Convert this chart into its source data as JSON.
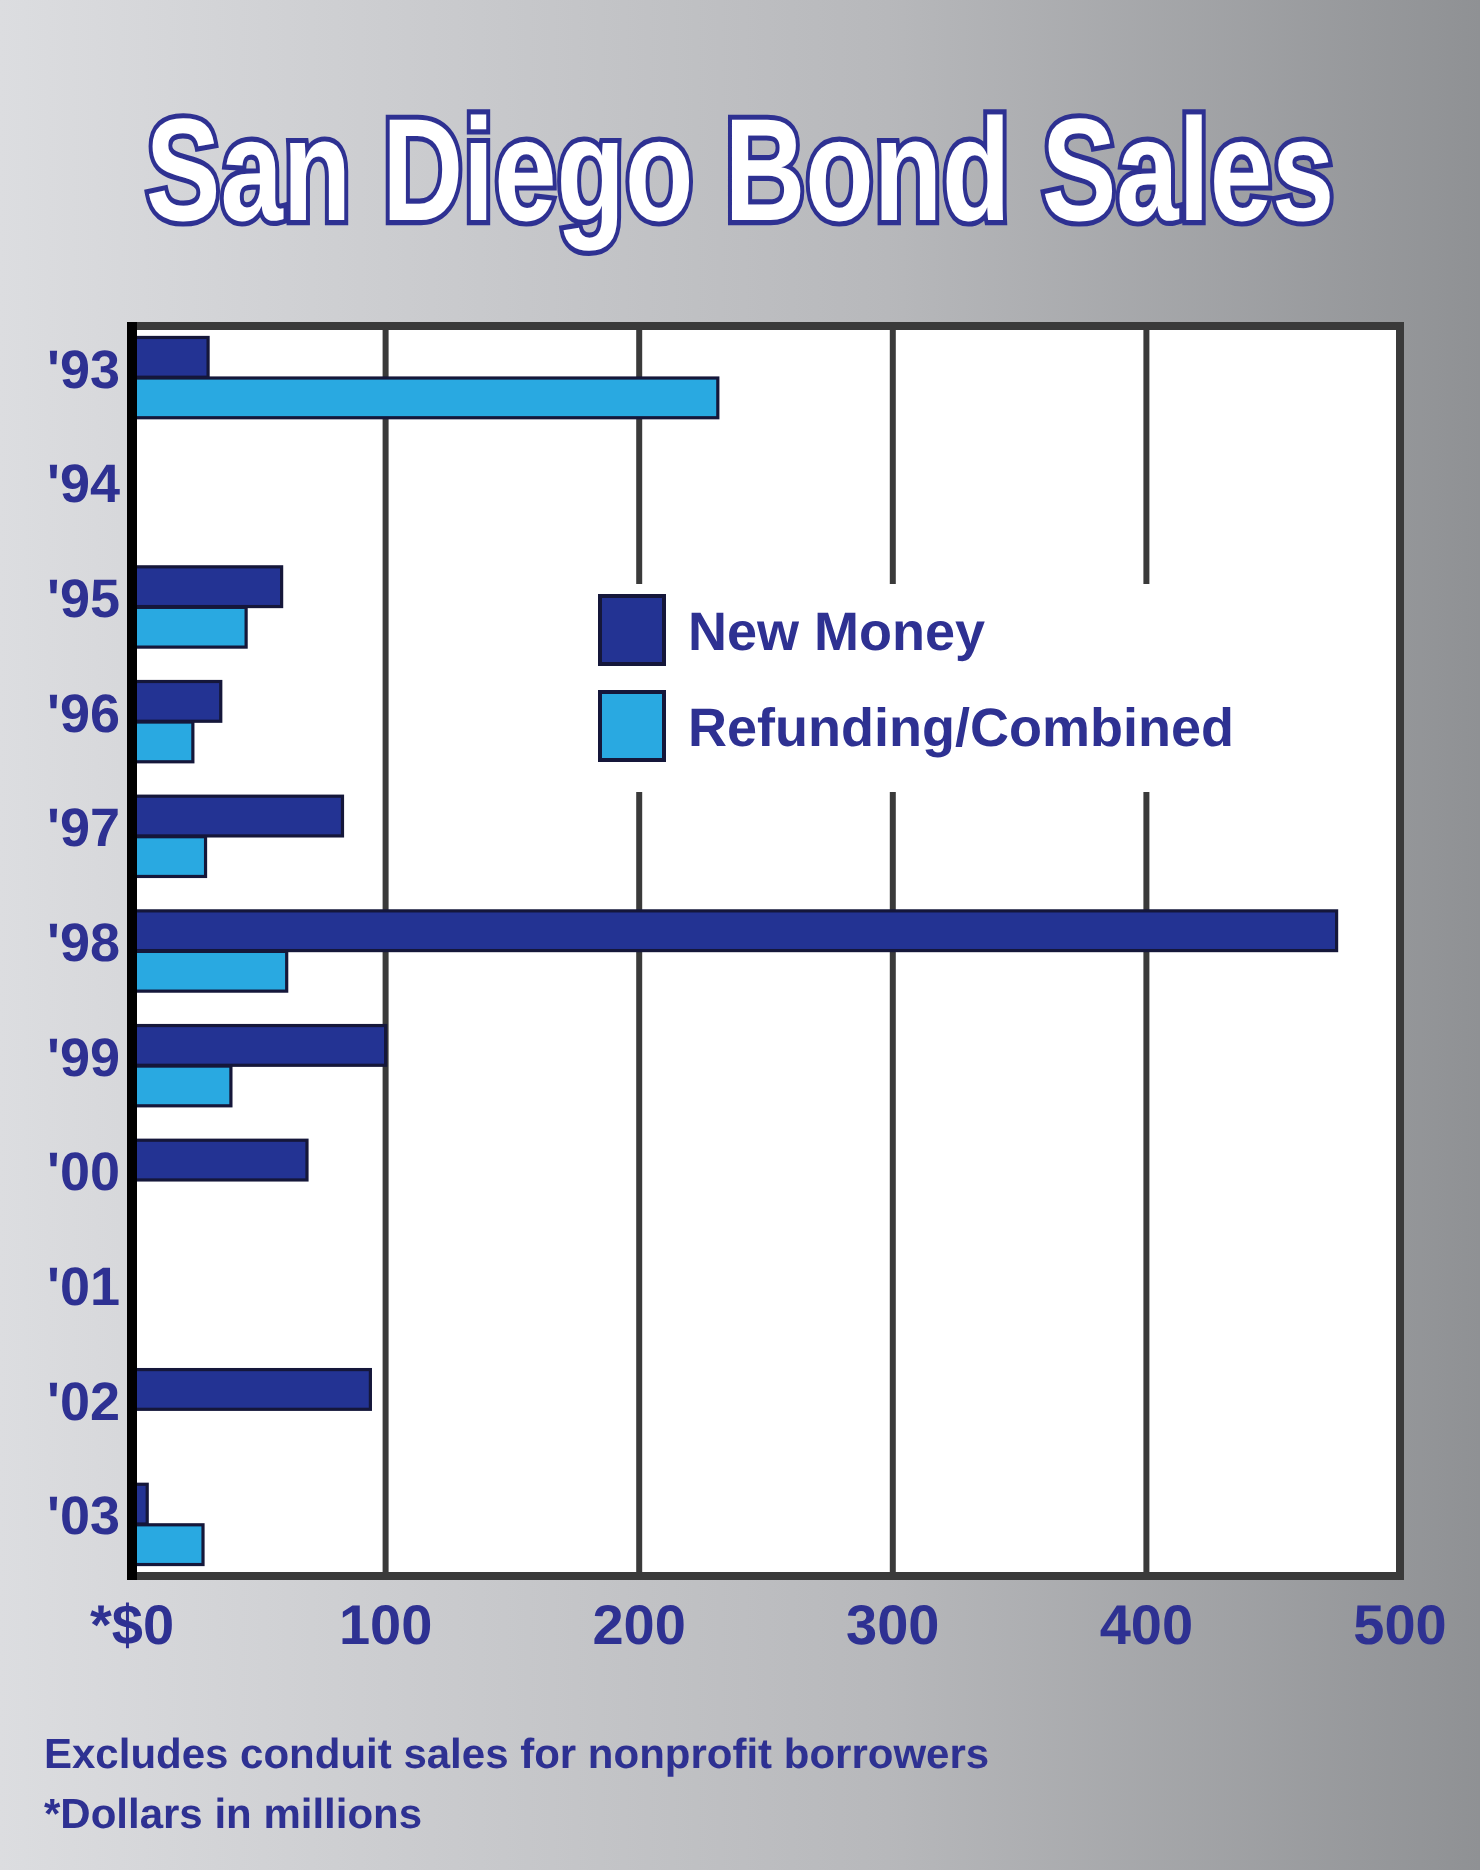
{
  "chart_data": {
    "type": "bar",
    "orientation": "horizontal",
    "title": "San Diego Bond Sales",
    "categories": [
      "'93",
      "'94",
      "'95",
      "'96",
      "'97",
      "'98",
      "'99",
      "'00",
      "'01",
      "'02",
      "'03"
    ],
    "series": [
      {
        "name": "New Money",
        "color": "#233393",
        "values": [
          30,
          null,
          59,
          35,
          83,
          475,
          100,
          69,
          null,
          94,
          6
        ]
      },
      {
        "name": "Refunding/Combined",
        "color": "#29a9e1",
        "values": [
          231,
          null,
          45,
          24,
          29,
          61,
          39,
          null,
          null,
          null,
          28
        ]
      }
    ],
    "xlim": [
      0,
      500
    ],
    "xticks": [
      {
        "value": 0,
        "label": "*$0"
      },
      100,
      200,
      300,
      400,
      500
    ],
    "grid": "x",
    "legend": "right",
    "annotations": [
      "Excludes conduit sales for nonprofit borrowers",
      "*Dollars in millions"
    ]
  }
}
